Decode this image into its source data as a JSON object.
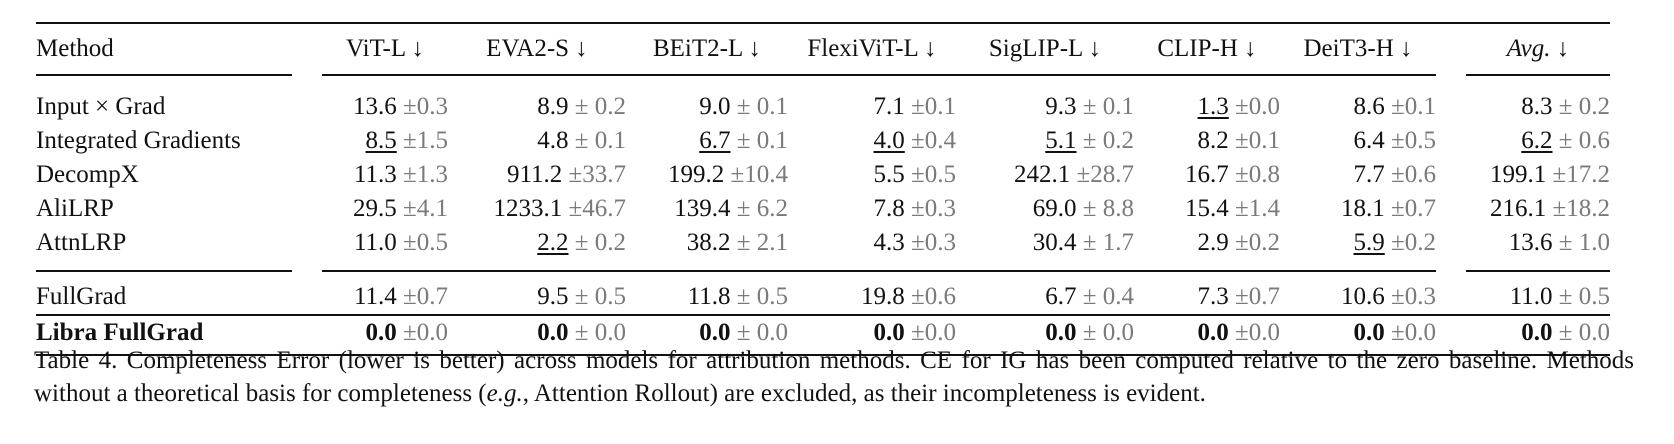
{
  "table": {
    "headers": {
      "method": "Method",
      "models": [
        "ViT-L ↓",
        "EVA2-S ↓",
        "BEiT2-L ↓",
        "FlexiViT-L ↓",
        "SigLIP-L ↓",
        "CLIP-H ↓",
        "DeiT3-H ↓"
      ],
      "avg": "Avg. ↓"
    },
    "group1": [
      {
        "method": "Input × Grad",
        "cells": [
          [
            "13.6",
            "±0.3",
            ""
          ],
          [
            "8.9",
            "± 0.2",
            ""
          ],
          [
            "9.0",
            "± 0.1",
            ""
          ],
          [
            "7.1",
            "±0.1",
            ""
          ],
          [
            "9.3",
            "± 0.1",
            ""
          ],
          [
            "1.3",
            "±0.0",
            "u"
          ],
          [
            "8.6",
            "±0.1",
            ""
          ]
        ],
        "avg": [
          "8.3",
          "± 0.2",
          ""
        ]
      },
      {
        "method": "Integrated Gradients",
        "cells": [
          [
            "8.5",
            "±1.5",
            "u"
          ],
          [
            "4.8",
            "± 0.1",
            ""
          ],
          [
            "6.7",
            "± 0.1",
            "u"
          ],
          [
            "4.0",
            "±0.4",
            "u"
          ],
          [
            "5.1",
            "± 0.2",
            "u"
          ],
          [
            "8.2",
            "±0.1",
            ""
          ],
          [
            "6.4",
            "±0.5",
            ""
          ]
        ],
        "avg": [
          "6.2",
          "± 0.6",
          "u"
        ]
      },
      {
        "method": "DecompX",
        "cells": [
          [
            "11.3",
            "±1.3",
            ""
          ],
          [
            "911.2",
            "±33.7",
            ""
          ],
          [
            "199.2",
            "±10.4",
            ""
          ],
          [
            "5.5",
            "±0.5",
            ""
          ],
          [
            "242.1",
            "±28.7",
            ""
          ],
          [
            "16.7",
            "±0.8",
            ""
          ],
          [
            "7.7",
            "±0.6",
            ""
          ]
        ],
        "avg": [
          "199.1",
          "±17.2",
          ""
        ]
      },
      {
        "method": "AliLRP",
        "cells": [
          [
            "29.5",
            "±4.1",
            ""
          ],
          [
            "1233.1",
            "±46.7",
            ""
          ],
          [
            "139.4",
            "± 6.2",
            ""
          ],
          [
            "7.8",
            "±0.3",
            ""
          ],
          [
            "69.0",
            "± 8.8",
            ""
          ],
          [
            "15.4",
            "±1.4",
            ""
          ],
          [
            "18.1",
            "±0.7",
            ""
          ]
        ],
        "avg": [
          "216.1",
          "±18.2",
          ""
        ]
      },
      {
        "method": "AttnLRP",
        "cells": [
          [
            "11.0",
            "±0.5",
            ""
          ],
          [
            "2.2",
            "± 0.2",
            "u"
          ],
          [
            "38.2",
            "± 2.1",
            ""
          ],
          [
            "4.3",
            "±0.3",
            ""
          ],
          [
            "30.4",
            "± 1.7",
            ""
          ],
          [
            "2.9",
            "±0.2",
            ""
          ],
          [
            "5.9",
            "±0.2",
            "u"
          ]
        ],
        "avg": [
          "13.6",
          "± 1.0",
          ""
        ]
      }
    ],
    "group2": [
      {
        "method": "FullGrad",
        "bold": false,
        "cells": [
          [
            "11.4",
            "±0.7",
            ""
          ],
          [
            "9.5",
            "± 0.5",
            ""
          ],
          [
            "11.8",
            "± 0.5",
            ""
          ],
          [
            "19.8",
            "±0.6",
            ""
          ],
          [
            "6.7",
            "± 0.4",
            ""
          ],
          [
            "7.3",
            "±0.7",
            ""
          ],
          [
            "10.6",
            "±0.3",
            ""
          ]
        ],
        "avg": [
          "11.0",
          "± 0.5",
          ""
        ]
      },
      {
        "method": "Libra FullGrad",
        "bold": true,
        "cells": [
          [
            "0.0",
            "±0.0",
            "b"
          ],
          [
            "0.0",
            "± 0.0",
            "b"
          ],
          [
            "0.0",
            "± 0.0",
            "b"
          ],
          [
            "0.0",
            "±0.0",
            "b"
          ],
          [
            "0.0",
            "± 0.0",
            "b"
          ],
          [
            "0.0",
            "±0.0",
            "b"
          ],
          [
            "0.0",
            "±0.0",
            "b"
          ]
        ],
        "avg": [
          "0.0",
          "± 0.0",
          "b"
        ]
      }
    ]
  },
  "caption": {
    "lead": "Table 4.  Completeness Error (lower is better) across models for attribution methods.  CE for IG has been computed relative to the zero baseline. Methods without a theoretical basis for completeness (",
    "eg": "e.g.",
    "tail": ", Attention Rollout) are excluded, as their incompleteness is evident."
  }
}
